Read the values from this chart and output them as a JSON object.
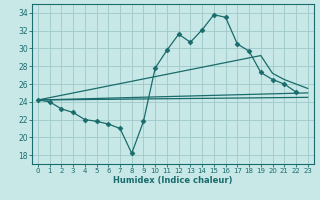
{
  "xlabel": "Humidex (Indice chaleur)",
  "ylabel": "",
  "xlim": [
    -0.5,
    23.5
  ],
  "ylim": [
    17,
    35
  ],
  "yticks": [
    18,
    20,
    22,
    24,
    26,
    28,
    30,
    32,
    34
  ],
  "xticks": [
    0,
    1,
    2,
    3,
    4,
    5,
    6,
    7,
    8,
    9,
    10,
    11,
    12,
    13,
    14,
    15,
    16,
    17,
    18,
    19,
    20,
    21,
    22,
    23
  ],
  "background_color": "#c8e8e8",
  "grid_color": "#a0c8c8",
  "line_color": "#1a6b6b",
  "lines": [
    {
      "x": [
        0,
        1,
        2,
        3,
        4,
        5,
        6,
        7,
        8,
        9,
        10,
        11,
        12,
        13,
        14,
        15,
        16,
        17,
        18,
        19,
        20,
        21,
        22
      ],
      "y": [
        24.2,
        24.0,
        23.2,
        22.8,
        22.0,
        21.8,
        21.5,
        21.0,
        18.2,
        21.8,
        27.8,
        29.8,
        31.6,
        30.7,
        32.1,
        33.8,
        33.5,
        30.5,
        29.7,
        27.3,
        26.5,
        26.0,
        25.1
      ],
      "marker": "D",
      "markersize": 2.5
    },
    {
      "x": [
        0,
        23
      ],
      "y": [
        24.2,
        24.5
      ],
      "marker": null,
      "markersize": 0
    },
    {
      "x": [
        0,
        23
      ],
      "y": [
        24.2,
        25.0
      ],
      "marker": null,
      "markersize": 0
    },
    {
      "x": [
        0,
        19,
        20,
        21,
        22,
        23
      ],
      "y": [
        24.2,
        29.2,
        27.2,
        26.5,
        26.0,
        25.5
      ],
      "marker": null,
      "markersize": 0
    }
  ]
}
